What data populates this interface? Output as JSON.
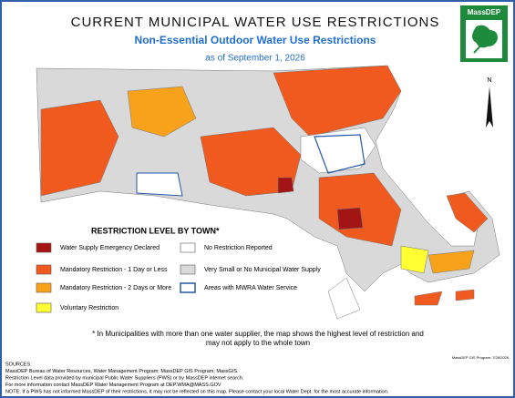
{
  "header": {
    "title": "CURRENT MUNICIPAL WATER USE RESTRICTIONS",
    "subtitle": "Non-Essential Outdoor Water Use Restrictions",
    "date": "as of September 1, 2026"
  },
  "logo": "MassDEP",
  "north": "N",
  "legend": {
    "title": "RESTRICTION LEVEL BY TOWN*",
    "items": [
      {
        "label": "Water Supply Emergency Declared",
        "color": "#a31515",
        "style": "fill"
      },
      {
        "label": "Mandatory Restriction - 1 Day or Less",
        "color": "#f05a1e",
        "style": "fill"
      },
      {
        "label": "Mandatory Restriction - 2 Days or More",
        "color": "#f7a21a",
        "style": "fill"
      },
      {
        "label": "Voluntary Restriction",
        "color": "#ffff33",
        "style": "fill"
      },
      {
        "label": "No Restriction Reported",
        "color": "#ffffff",
        "style": "fill"
      },
      {
        "label": "Very Small or No Municipal Water Supply",
        "color": "#d9d9d9",
        "style": "fill"
      },
      {
        "label": "Areas with MWRA Water Service",
        "color": "#2457a8",
        "style": "outline"
      }
    ]
  },
  "footnote": [
    "* In Municipalities with more than one water supplier, the map shows the highest level of restriction and",
    "may not apply to the whole town"
  ],
  "credit": "MassDEP GIS Program: 7/28/2026",
  "sources": [
    "SOURCES:",
    "MassDEP Bureau of Water Resources, Water Management Program; MassDEP GIS Program; MassGIS.",
    "Restriction Level data provided by municipal Public Water Suppliers (PWS) or by MassDEP internet search.",
    "For more information contact MassDEP Water Management Program at DEP.WMA@MASS.GOV",
    "NOTE: If a PWS has not informed MassDEP of their restrictions, it may not be reflected on this map. Please contact your local Water Dept. for the most accurate information."
  ]
}
